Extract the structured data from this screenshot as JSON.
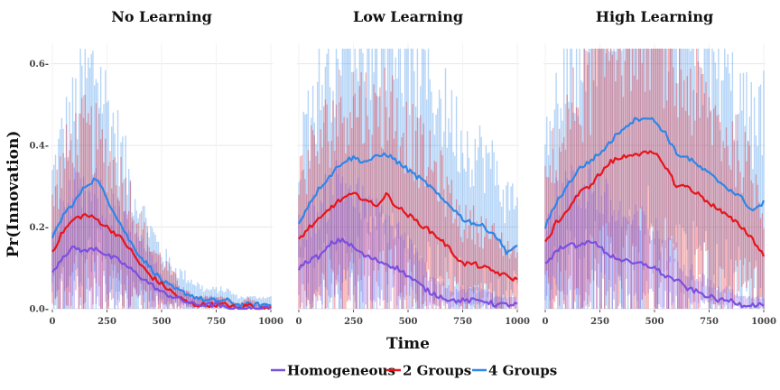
{
  "chart_data": {
    "type": "line",
    "ylabel": "Pr(Innovation)",
    "xlabel": "Time",
    "xlim": [
      0,
      1000
    ],
    "ylim": [
      0,
      0.65
    ],
    "xticks": [
      0,
      250,
      500,
      750,
      1000
    ],
    "xtick_labels": [
      "0",
      "250",
      "500",
      "750",
      "1000"
    ],
    "yticks": [
      0.0,
      0.2,
      0.4,
      0.6
    ],
    "ytick_labels": [
      "0.0-",
      "0.2-",
      "0.4-",
      "0.6-"
    ],
    "legend": {
      "position": "bottom",
      "entries": [
        "Homogeneous",
        "2 Groups",
        "4 Groups"
      ]
    },
    "colors": {
      "Homogeneous": "#7b4fe0",
      "2 Groups": "#e8141a",
      "4 Groups": "#2e86e8"
    },
    "x": [
      0,
      50,
      100,
      150,
      200,
      250,
      300,
      350,
      400,
      450,
      500,
      550,
      600,
      650,
      700,
      750,
      800,
      850,
      900,
      950,
      1000
    ],
    "panels": [
      {
        "title": "No Learning",
        "series": [
          {
            "name": "Homogeneous",
            "values": [
              0.09,
              0.13,
              0.15,
              0.14,
              0.15,
              0.13,
              0.12,
              0.1,
              0.08,
              0.06,
              0.04,
              0.03,
              0.02,
              0.01,
              0.01,
              0.01,
              0.0,
              0.0,
              0.0,
              0.0,
              0.0
            ]
          },
          {
            "name": "2 Groups",
            "values": [
              0.14,
              0.19,
              0.22,
              0.23,
              0.22,
              0.2,
              0.18,
              0.15,
              0.11,
              0.08,
              0.06,
              0.04,
              0.02,
              0.01,
              0.01,
              0.01,
              0.01,
              0.0,
              0.01,
              0.0,
              0.0
            ]
          },
          {
            "name": "4 Groups",
            "values": [
              0.17,
              0.23,
              0.26,
              0.3,
              0.32,
              0.27,
              0.22,
              0.17,
              0.13,
              0.1,
              0.07,
              0.05,
              0.04,
              0.03,
              0.02,
              0.02,
              0.02,
              0.01,
              0.01,
              0.01,
              0.01
            ]
          }
        ]
      },
      {
        "title": "Low Learning",
        "series": [
          {
            "name": "Homogeneous",
            "values": [
              0.1,
              0.12,
              0.13,
              0.16,
              0.17,
              0.15,
              0.13,
              0.12,
              0.11,
              0.1,
              0.08,
              0.06,
              0.04,
              0.03,
              0.02,
              0.02,
              0.02,
              0.02,
              0.01,
              0.01,
              0.01
            ]
          },
          {
            "name": "2 Groups",
            "values": [
              0.17,
              0.2,
              0.22,
              0.25,
              0.27,
              0.28,
              0.27,
              0.25,
              0.28,
              0.25,
              0.23,
              0.21,
              0.19,
              0.17,
              0.14,
              0.11,
              0.11,
              0.1,
              0.09,
              0.08,
              0.07
            ]
          },
          {
            "name": "4 Groups",
            "values": [
              0.21,
              0.26,
              0.3,
              0.33,
              0.36,
              0.37,
              0.36,
              0.37,
              0.38,
              0.36,
              0.34,
              0.32,
              0.3,
              0.27,
              0.25,
              0.22,
              0.21,
              0.2,
              0.18,
              0.14,
              0.15
            ]
          }
        ]
      },
      {
        "title": "High Learning",
        "series": [
          {
            "name": "Homogeneous",
            "values": [
              0.11,
              0.14,
              0.16,
              0.15,
              0.17,
              0.15,
              0.13,
              0.12,
              0.11,
              0.11,
              0.1,
              0.08,
              0.07,
              0.05,
              0.04,
              0.03,
              0.02,
              0.02,
              0.01,
              0.01,
              0.01
            ]
          },
          {
            "name": "2 Groups",
            "values": [
              0.16,
              0.21,
              0.24,
              0.28,
              0.3,
              0.33,
              0.36,
              0.37,
              0.38,
              0.38,
              0.38,
              0.35,
              0.3,
              0.3,
              0.28,
              0.26,
              0.24,
              0.22,
              0.2,
              0.17,
              0.13
            ]
          },
          {
            "name": "4 Groups",
            "values": [
              0.2,
              0.26,
              0.3,
              0.34,
              0.36,
              0.38,
              0.41,
              0.44,
              0.46,
              0.47,
              0.46,
              0.43,
              0.38,
              0.37,
              0.35,
              0.33,
              0.31,
              0.29,
              0.27,
              0.24,
              0.26
            ]
          }
        ]
      }
    ]
  }
}
